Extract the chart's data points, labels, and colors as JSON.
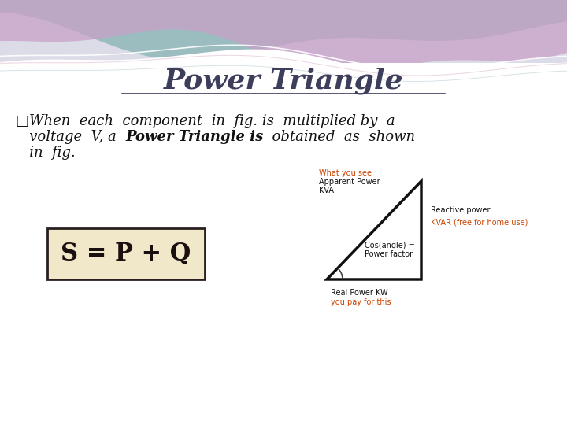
{
  "bg_color": "#e8e8ee",
  "title": "Power Triangle",
  "title_fontsize": 26,
  "title_color": "#3d3d5c",
  "body_fontsize": 13,
  "body_color": "#111111",
  "formula_text": "S = P + Q",
  "formula_box_bg": "#f0e8c8",
  "formula_box_edge": "#2a2020",
  "formula_fontsize": 22,
  "triangle_color": "#111111",
  "triangle_linewidth": 2.5,
  "label_hyp_line1": "What you see",
  "label_hyp_line2": "Apparent Power",
  "label_hyp_line3": "KVA",
  "label_hyp_color_title": "#cc4400",
  "label_hyp_color_rest": "#111111",
  "label_angle_line1": "Cos(angle) =",
  "label_angle_line2": "Power factor",
  "label_angle_color": "#111111",
  "label_right_line1": "Reactive power:",
  "label_right_line2": "KVAR (free for",
  "label_right_line3": "home use)",
  "label_right_color1": "#111111",
  "label_right_color2": "#cc4400",
  "label_bottom_line1": "Real Power KW",
  "label_bottom_line2": "you pay for this",
  "label_bottom_color1": "#111111",
  "label_bottom_color2": "#cc4400"
}
